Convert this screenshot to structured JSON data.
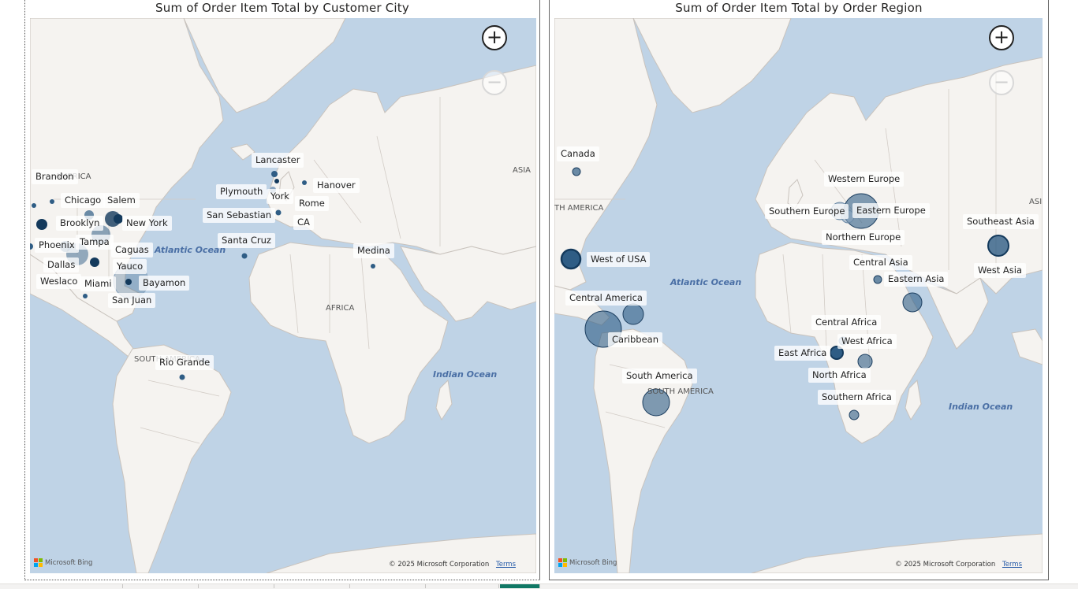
{
  "left_map": {
    "title": "Sum of Order Item Total by Customer City",
    "zoom_in": "+",
    "zoom_out": "−",
    "geo_labels": [
      "AMERICA",
      "ASIA",
      "AFRICA",
      "SOUTH AMERICA"
    ],
    "ocean_labels": [
      "Atlantic Ocean",
      "Indian Ocean"
    ],
    "bubble_labels": [
      "Brandon",
      "Chicago",
      "Salem",
      "Brooklyn",
      "New York",
      "Phoenix",
      "Tampa",
      "Caguas",
      "Dallas",
      "Yauco",
      "Weslaco",
      "Miami",
      "Bayamon",
      "San Juan",
      "Lancaster",
      "Plymouth",
      "York",
      "Hanover",
      "Rome",
      "San Sebastian",
      "CA",
      "Santa Cruz",
      "Medina",
      "Rio Grande"
    ],
    "attribution": "© 2025 Microsoft Corporation",
    "terms": "Terms",
    "bing": "Microsoft Bing"
  },
  "right_map": {
    "title": "Sum of Order Item Total by Order Region",
    "zoom_in": "+",
    "zoom_out": "−",
    "geo_labels": [
      "TH AMERICA",
      "ASI",
      "SOUTH AMERICA"
    ],
    "ocean_labels": [
      "Atlantic Ocean",
      "Indian Ocean"
    ],
    "bubble_labels": [
      "Canada",
      "Western Europe",
      "Southern Europe",
      "Eastern Europe",
      "Northern Europe",
      "Southeast Asia",
      "West of USA",
      "Central Asia",
      "West Asia",
      "Eastern Asia",
      "Central America",
      "Central Africa",
      "Caribbean",
      "West Africa",
      "East Africa",
      "North Africa",
      "South America",
      "Southern Africa"
    ],
    "attribution": "© 2025 Microsoft Corporation",
    "terms": "Terms",
    "bing": "Microsoft Bing"
  },
  "colors": {
    "ocean": "#bfd3e6",
    "land": "#f5f3f0",
    "border": "#c9c3bd",
    "bubble": "#2f5d85",
    "bubble_dark": "#143a5c",
    "active_tab": "#117865"
  }
}
